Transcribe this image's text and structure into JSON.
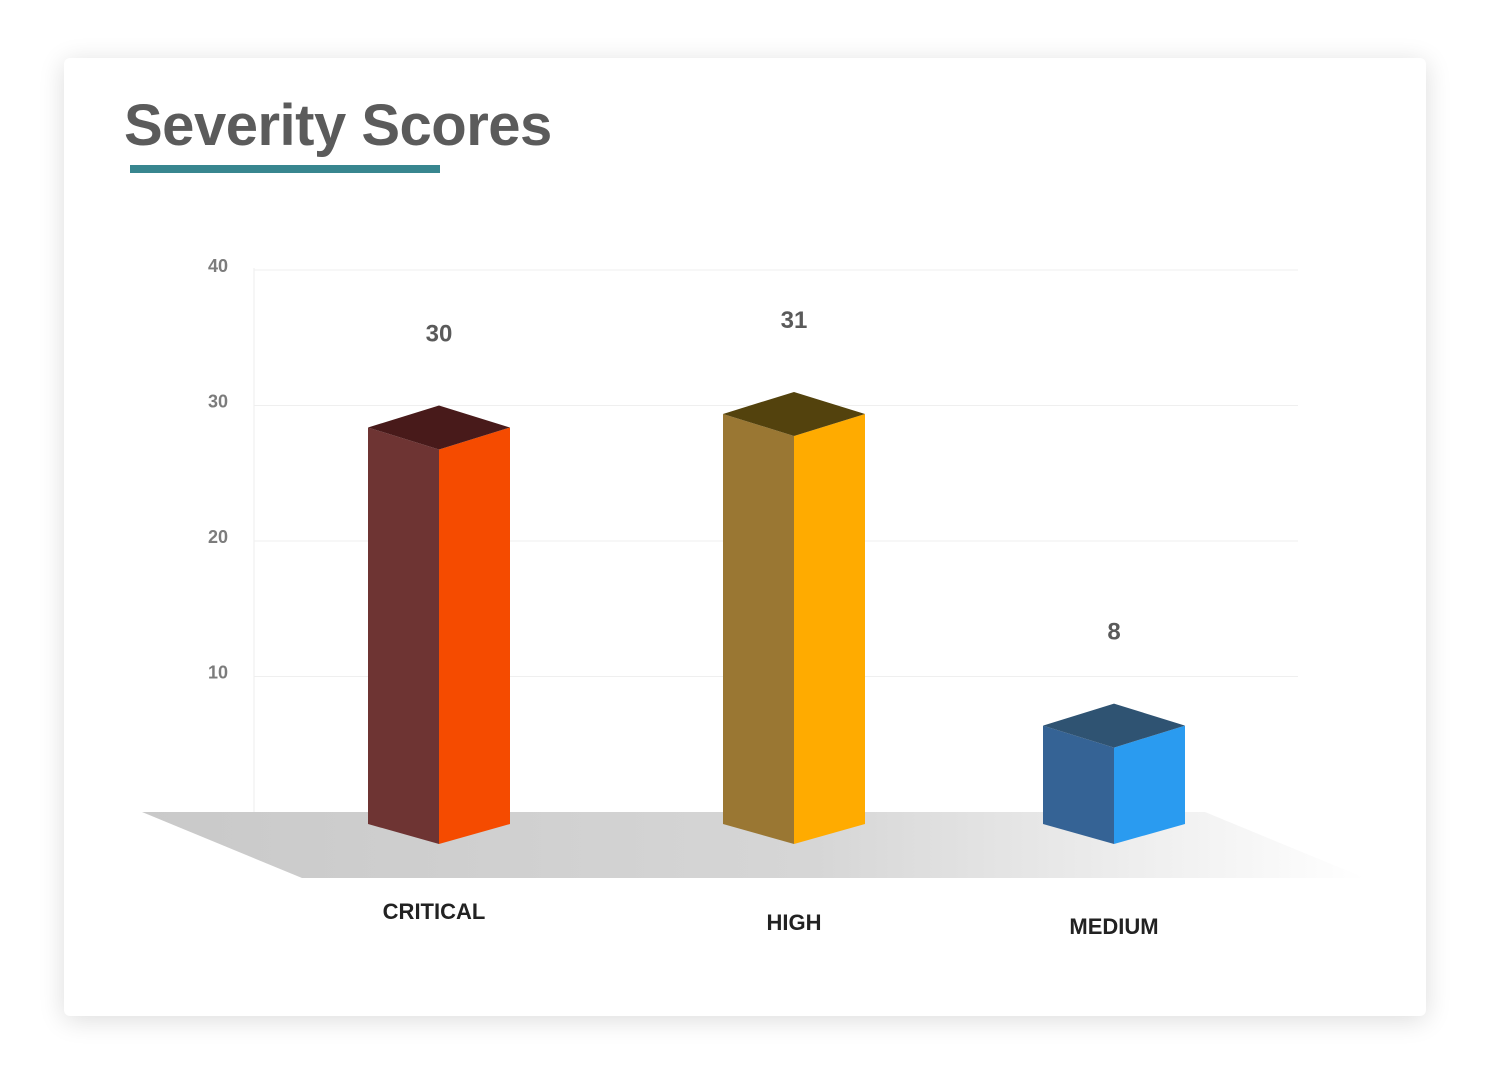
{
  "title": "Severity Scores",
  "chart_data": {
    "type": "bar",
    "title": "Severity Scores",
    "xlabel": "",
    "ylabel": "",
    "ylim": [
      0,
      40
    ],
    "yticks": [
      10,
      20,
      30,
      40
    ],
    "grid": true,
    "legend": "none",
    "categories": [
      "CRITICAL",
      "HIGH",
      "MEDIUM"
    ],
    "values": [
      30,
      31,
      8
    ],
    "colors": [
      {
        "front": "#f54b00",
        "side": "#6e3433",
        "top": "#481a1a"
      },
      {
        "front": "#ffab00",
        "side": "#9a7733",
        "top": "#53420d"
      },
      {
        "front": "#2a9bf0",
        "side": "#356395",
        "top": "#2f5372"
      }
    ],
    "accent": "#38868f"
  }
}
